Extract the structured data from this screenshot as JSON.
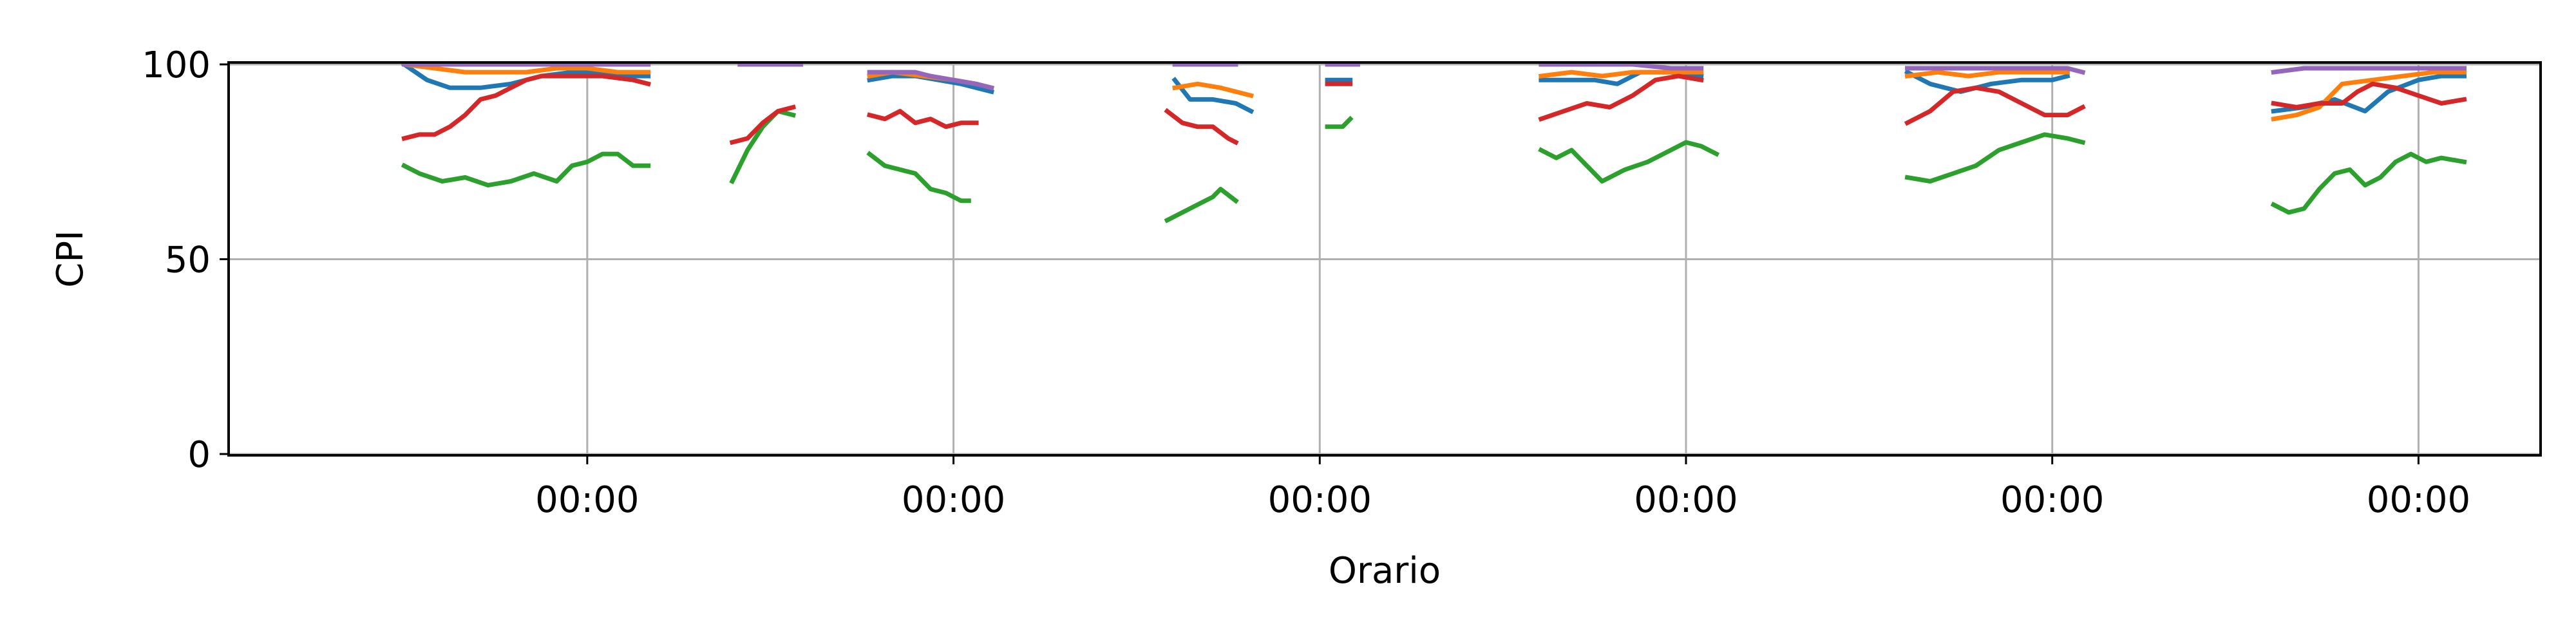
{
  "chart_data": {
    "type": "line",
    "xlabel": "Orario",
    "ylabel": "CPI",
    "ylim": [
      0,
      100
    ],
    "xlim": [
      -23,
      280
    ],
    "grid": true,
    "legend": "none",
    "x_unit": "hours",
    "x_ticks": [
      {
        "x": 24,
        "label": "00:00"
      },
      {
        "x": 72,
        "label": "00:00"
      },
      {
        "x": 120,
        "label": "00:00"
      },
      {
        "x": 168,
        "label": "00:00"
      },
      {
        "x": 216,
        "label": "00:00"
      },
      {
        "x": 264,
        "label": "00:00"
      }
    ],
    "y_ticks": [
      {
        "y": 0,
        "label": "0"
      },
      {
        "y": 50,
        "label": "50"
      },
      {
        "y": 100,
        "label": "100"
      }
    ],
    "series": [
      {
        "color": "#1f77b4",
        "segments": [
          [
            [
              0,
              100
            ],
            [
              3,
              96
            ],
            [
              6,
              94
            ],
            [
              10,
              94
            ],
            [
              14,
              95
            ],
            [
              18,
              97
            ],
            [
              22,
              98
            ],
            [
              26,
              98
            ],
            [
              30,
              97
            ],
            [
              32,
              97
            ]
          ],
          [
            [
              61,
              96
            ],
            [
              64,
              97
            ],
            [
              67,
              97
            ],
            [
              70,
              96
            ],
            [
              73,
              95
            ],
            [
              75,
              94
            ],
            [
              77,
              93
            ]
          ],
          [
            [
              101,
              96
            ],
            [
              103,
              91
            ],
            [
              106,
              91
            ],
            [
              109,
              90
            ],
            [
              111,
              88
            ]
          ],
          [
            [
              121,
              96
            ],
            [
              123,
              96
            ],
            [
              124,
              96
            ]
          ],
          [
            [
              149,
              96
            ],
            [
              153,
              96
            ],
            [
              156,
              96
            ],
            [
              159,
              95
            ],
            [
              162,
              98
            ],
            [
              166,
              98
            ],
            [
              170,
              97
            ]
          ],
          [
            [
              197,
              98
            ],
            [
              200,
              95
            ],
            [
              204,
              93
            ],
            [
              208,
              95
            ],
            [
              212,
              96
            ],
            [
              216,
              96
            ],
            [
              218,
              97
            ]
          ],
          [
            [
              245,
              88
            ],
            [
              249,
              89
            ],
            [
              253,
              91
            ],
            [
              257,
              88
            ],
            [
              260,
              93
            ],
            [
              264,
              96
            ],
            [
              267,
              97
            ],
            [
              270,
              97
            ]
          ]
        ]
      },
      {
        "color": "#ff7f0e",
        "segments": [
          [
            [
              0,
              100
            ],
            [
              4,
              99
            ],
            [
              8,
              98
            ],
            [
              12,
              98
            ],
            [
              16,
              98
            ],
            [
              20,
              99
            ],
            [
              24,
              99
            ],
            [
              28,
              98
            ],
            [
              32,
              98
            ]
          ],
          [
            [
              61,
              97
            ],
            [
              64,
              98
            ],
            [
              68,
              97
            ],
            [
              72,
              96
            ],
            [
              75,
              95
            ],
            [
              77,
              94
            ]
          ],
          [
            [
              101,
              94
            ],
            [
              104,
              95
            ],
            [
              107,
              94
            ],
            [
              109,
              93
            ],
            [
              111,
              92
            ]
          ],
          [
            [
              149,
              97
            ],
            [
              153,
              98
            ],
            [
              157,
              97
            ],
            [
              161,
              98
            ],
            [
              165,
              98
            ],
            [
              170,
              98
            ]
          ],
          [
            [
              197,
              97
            ],
            [
              201,
              98
            ],
            [
              205,
              97
            ],
            [
              209,
              98
            ],
            [
              213,
              98
            ],
            [
              218,
              98
            ]
          ],
          [
            [
              245,
              86
            ],
            [
              248,
              87
            ],
            [
              251,
              89
            ],
            [
              254,
              95
            ],
            [
              258,
              96
            ],
            [
              262,
              97
            ],
            [
              266,
              98
            ],
            [
              270,
              98
            ]
          ]
        ]
      },
      {
        "color": "#2ca02c",
        "segments": [
          [
            [
              0,
              74
            ],
            [
              2,
              72
            ],
            [
              5,
              70
            ],
            [
              8,
              71
            ],
            [
              11,
              69
            ],
            [
              14,
              70
            ],
            [
              17,
              72
            ],
            [
              20,
              70
            ],
            [
              22,
              74
            ],
            [
              24,
              75
            ],
            [
              26,
              77
            ],
            [
              28,
              77
            ],
            [
              30,
              74
            ],
            [
              32,
              74
            ]
          ],
          [
            [
              43,
              70
            ],
            [
              45,
              78
            ],
            [
              47,
              84
            ],
            [
              49,
              88
            ],
            [
              51,
              87
            ]
          ],
          [
            [
              61,
              77
            ],
            [
              63,
              74
            ],
            [
              65,
              73
            ],
            [
              67,
              72
            ],
            [
              69,
              68
            ],
            [
              71,
              67
            ],
            [
              73,
              65
            ],
            [
              74,
              65
            ]
          ],
          [
            [
              100,
              60
            ],
            [
              102,
              62
            ],
            [
              104,
              64
            ],
            [
              106,
              66
            ],
            [
              107,
              68
            ],
            [
              109,
              65
            ]
          ],
          [
            [
              121,
              84
            ],
            [
              123,
              84
            ],
            [
              124,
              86
            ]
          ],
          [
            [
              149,
              78
            ],
            [
              151,
              76
            ],
            [
              153,
              78
            ],
            [
              155,
              74
            ],
            [
              157,
              70
            ],
            [
              160,
              73
            ],
            [
              163,
              75
            ],
            [
              166,
              78
            ],
            [
              168,
              80
            ],
            [
              170,
              79
            ],
            [
              172,
              77
            ]
          ],
          [
            [
              197,
              71
            ],
            [
              200,
              70
            ],
            [
              203,
              72
            ],
            [
              206,
              74
            ],
            [
              209,
              78
            ],
            [
              212,
              80
            ],
            [
              215,
              82
            ],
            [
              218,
              81
            ],
            [
              220,
              80
            ]
          ],
          [
            [
              245,
              64
            ],
            [
              247,
              62
            ],
            [
              249,
              63
            ],
            [
              251,
              68
            ],
            [
              253,
              72
            ],
            [
              255,
              73
            ],
            [
              257,
              69
            ],
            [
              259,
              71
            ],
            [
              261,
              75
            ],
            [
              263,
              77
            ],
            [
              265,
              75
            ],
            [
              267,
              76
            ],
            [
              270,
              75
            ]
          ]
        ]
      },
      {
        "color": "#d62728",
        "segments": [
          [
            [
              0,
              81
            ],
            [
              2,
              82
            ],
            [
              4,
              82
            ],
            [
              6,
              84
            ],
            [
              8,
              87
            ],
            [
              10,
              91
            ],
            [
              12,
              92
            ],
            [
              14,
              94
            ],
            [
              16,
              96
            ],
            [
              18,
              97
            ],
            [
              22,
              97
            ],
            [
              26,
              97
            ],
            [
              30,
              96
            ],
            [
              32,
              95
            ]
          ],
          [
            [
              43,
              80
            ],
            [
              45,
              81
            ],
            [
              47,
              85
            ],
            [
              49,
              88
            ],
            [
              51,
              89
            ]
          ],
          [
            [
              61,
              87
            ],
            [
              63,
              86
            ],
            [
              65,
              88
            ],
            [
              67,
              85
            ],
            [
              69,
              86
            ],
            [
              71,
              84
            ],
            [
              73,
              85
            ],
            [
              75,
              85
            ]
          ],
          [
            [
              100,
              88
            ],
            [
              102,
              85
            ],
            [
              104,
              84
            ],
            [
              106,
              84
            ],
            [
              108,
              81
            ],
            [
              109,
              80
            ]
          ],
          [
            [
              121,
              95
            ],
            [
              123,
              95
            ],
            [
              124,
              95
            ]
          ],
          [
            [
              149,
              86
            ],
            [
              152,
              88
            ],
            [
              155,
              90
            ],
            [
              158,
              89
            ],
            [
              161,
              92
            ],
            [
              164,
              96
            ],
            [
              167,
              97
            ],
            [
              170,
              96
            ]
          ],
          [
            [
              197,
              85
            ],
            [
              200,
              88
            ],
            [
              203,
              93
            ],
            [
              206,
              94
            ],
            [
              209,
              93
            ],
            [
              212,
              90
            ],
            [
              215,
              87
            ],
            [
              218,
              87
            ],
            [
              220,
              89
            ]
          ],
          [
            [
              245,
              90
            ],
            [
              248,
              89
            ],
            [
              251,
              90
            ],
            [
              254,
              90
            ],
            [
              256,
              93
            ],
            [
              258,
              95
            ],
            [
              261,
              94
            ],
            [
              264,
              92
            ],
            [
              267,
              90
            ],
            [
              270,
              91
            ]
          ]
        ]
      },
      {
        "color": "#9467bd",
        "segments": [
          [
            [
              0,
              100
            ],
            [
              8,
              100
            ],
            [
              16,
              100
            ],
            [
              24,
              100
            ],
            [
              32,
              100
            ]
          ],
          [
            [
              44,
              100
            ],
            [
              48,
              100
            ],
            [
              52,
              100
            ]
          ],
          [
            [
              61,
              98
            ],
            [
              64,
              98
            ],
            [
              67,
              98
            ],
            [
              69,
              97
            ],
            [
              72,
              96
            ],
            [
              75,
              95
            ],
            [
              77,
              94
            ]
          ],
          [
            [
              101,
              100
            ],
            [
              105,
              100
            ],
            [
              109,
              100
            ]
          ],
          [
            [
              121,
              100
            ],
            [
              123,
              100
            ],
            [
              125,
              100
            ]
          ],
          [
            [
              149,
              100
            ],
            [
              155,
              100
            ],
            [
              161,
              100
            ],
            [
              166,
              99
            ],
            [
              170,
              99
            ]
          ],
          [
            [
              197,
              99
            ],
            [
              202,
              99
            ],
            [
              206,
              99
            ],
            [
              210,
              99
            ],
            [
              214,
              99
            ],
            [
              218,
              99
            ],
            [
              220,
              98
            ]
          ],
          [
            [
              245,
              98
            ],
            [
              249,
              99
            ],
            [
              253,
              99
            ],
            [
              257,
              99
            ],
            [
              261,
              99
            ],
            [
              265,
              99
            ],
            [
              270,
              99
            ]
          ]
        ]
      }
    ]
  }
}
